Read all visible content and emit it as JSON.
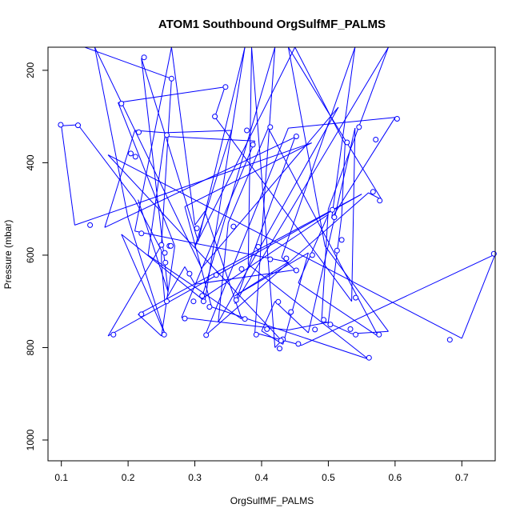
{
  "chart_data": {
    "type": "line",
    "title": "ATOM1 Southbound OrgSulfMF_PALMS",
    "xlabel": "OrgSulfMF_PALMS",
    "ylabel": "Pressure (mbar)",
    "xlim": [
      0.08,
      0.75
    ],
    "ylim": [
      1045,
      150
    ],
    "y_reversed": true,
    "x_ticks": [
      0.1,
      0.2,
      0.3,
      0.4,
      0.5,
      0.6,
      0.7
    ],
    "x_tick_labels": [
      "0.1",
      "0.2",
      "0.3",
      "0.4",
      "0.5",
      "0.6",
      "0.7"
    ],
    "y_ticks": [
      200,
      400,
      600,
      800,
      1000
    ],
    "y_tick_labels": [
      "200",
      "400",
      "600",
      "800",
      "1000"
    ],
    "grid": false,
    "legend": "none",
    "color": "#0000ff",
    "marker": "open-circle",
    "points": [
      [
        0.135,
        150
      ],
      [
        0.265,
        218
      ],
      [
        0.25,
        578
      ],
      [
        0.17,
        775
      ],
      [
        0.55,
        468
      ],
      [
        0.215,
        728
      ],
      [
        0.25,
        775
      ],
      [
        0.27,
        580
      ],
      [
        0.185,
        270
      ],
      [
        0.345,
        236
      ],
      [
        0.33,
        301
      ],
      [
        0.535,
        700
      ],
      [
        0.54,
        325
      ],
      [
        0.47,
        768
      ],
      [
        0.42,
        700
      ],
      [
        0.4,
        764
      ],
      [
        0.432,
        793
      ],
      [
        0.47,
        595
      ],
      [
        0.36,
        688
      ],
      [
        0.44,
        615
      ],
      [
        0.21,
        548
      ],
      [
        0.265,
        150
      ],
      [
        0.3,
        535
      ],
      [
        0.315,
        505
      ],
      [
        0.37,
        738
      ],
      [
        0.23,
        600
      ],
      [
        0.255,
        343
      ],
      [
        0.39,
        353
      ],
      [
        0.28,
        735
      ],
      [
        0.44,
        762
      ],
      [
        0.5,
        745
      ],
      [
        0.52,
        515
      ],
      [
        0.525,
        360
      ],
      [
        0.45,
        150
      ],
      [
        0.3,
        582
      ],
      [
        0.355,
        330
      ],
      [
        0.255,
        335
      ],
      [
        0.21,
        330
      ],
      [
        0.165,
        540
      ],
      [
        0.45,
        345
      ],
      [
        0.36,
        705
      ],
      [
        0.59,
        150
      ],
      [
        0.5,
        500
      ],
      [
        0.49,
        740
      ],
      [
        0.535,
        770
      ],
      [
        0.59,
        765
      ],
      [
        0.495,
        580
      ],
      [
        0.44,
        150
      ],
      [
        0.58,
        480
      ],
      [
        0.56,
        465
      ],
      [
        0.315,
        775
      ],
      [
        0.44,
        325
      ],
      [
        0.6,
        302
      ],
      [
        0.505,
        520
      ],
      [
        0.54,
        150
      ],
      [
        0.43,
        605
      ],
      [
        0.45,
        632
      ],
      [
        0.3,
        663
      ],
      [
        0.285,
        625
      ],
      [
        0.255,
        700
      ],
      [
        0.25,
        616
      ],
      [
        0.25,
        590
      ],
      [
        0.21,
        480
      ],
      [
        0.125,
        318
      ],
      [
        0.1,
        320
      ],
      [
        0.12,
        535
      ],
      [
        0.475,
        357
      ],
      [
        0.285,
        495
      ],
      [
        0.325,
        712
      ],
      [
        0.56,
        825
      ],
      [
        0.38,
        620
      ],
      [
        0.385,
        150
      ],
      [
        0.42,
        800
      ],
      [
        0.43,
        785
      ],
      [
        0.17,
        383
      ],
      [
        0.7,
        780
      ],
      [
        0.75,
        598
      ],
      [
        0.46,
        795
      ],
      [
        0.39,
        768
      ],
      [
        0.42,
        150
      ],
      [
        0.31,
        695
      ],
      [
        0.5,
        512
      ],
      [
        0.455,
        660
      ],
      [
        0.575,
        776
      ],
      [
        0.41,
        325
      ],
      [
        0.35,
        530
      ],
      [
        0.335,
        745
      ],
      [
        0.515,
        280
      ],
      [
        0.31,
        628
      ],
      [
        0.15,
        150
      ],
      [
        0.2,
        520
      ],
      [
        0.255,
        770
      ],
      [
        0.19,
        555
      ],
      [
        0.315,
        700
      ],
      [
        0.375,
        150
      ],
      [
        0.305,
        570
      ],
      [
        0.22,
        174
      ],
      [
        0.26,
        680
      ],
      [
        0.215,
        480
      ]
    ],
    "series": [
      {
        "values": [
          [
            0.265,
            218
          ],
          [
            0.25,
            578
          ],
          [
            0.178,
            772
          ],
          [
            0.567,
            463
          ],
          [
            0.22,
            728
          ],
          [
            0.254,
            772
          ],
          [
            0.262,
            580
          ],
          [
            0.19,
            272
          ],
          [
            0.346,
            236
          ],
          [
            0.33,
            300
          ],
          [
            0.541,
            692
          ],
          [
            0.546,
            323
          ],
          [
            0.48,
            761
          ],
          [
            0.425,
            701
          ],
          [
            0.408,
            760
          ],
          [
            0.432,
            782
          ],
          [
            0.476,
            600
          ],
          [
            0.375,
            738
          ],
          [
            0.437,
            607
          ],
          [
            0.22,
            553
          ],
          [
            0.313,
            700
          ],
          [
            0.303,
            542
          ],
          [
            0.387,
            361
          ],
          [
            0.285,
            737
          ],
          [
            0.444,
            723
          ],
          [
            0.503,
            750
          ],
          [
            0.509,
            518
          ],
          [
            0.528,
            356
          ],
          [
            0.298,
            700
          ],
          [
            0.378,
            330
          ],
          [
            0.258,
            340
          ],
          [
            0.216,
            334
          ],
          [
            0.143,
            535
          ],
          [
            0.452,
            343
          ],
          [
            0.362,
            697
          ],
          [
            0.506,
            502
          ],
          [
            0.493,
            740
          ],
          [
            0.533,
            760
          ],
          [
            0.576,
            772
          ],
          [
            0.52,
            567
          ],
          [
            0.577,
            482
          ],
          [
            0.571,
            350
          ],
          [
            0.317,
            773
          ],
          [
            0.413,
            323
          ],
          [
            0.603,
            305
          ],
          [
            0.513,
            590
          ],
          [
            0.413,
            609
          ],
          [
            0.452,
            633
          ],
          [
            0.311,
            688
          ],
          [
            0.292,
            640
          ],
          [
            0.258,
            700
          ],
          [
            0.256,
            616
          ],
          [
            0.255,
            595
          ],
          [
            0.204,
            380
          ],
          [
            0.125,
            319
          ],
          [
            0.099,
            318
          ],
          [
            0.541,
            772
          ],
          [
            0.427,
            802
          ],
          [
            0.429,
            785
          ],
          [
            0.682,
            783
          ],
          [
            0.748,
            597
          ],
          [
            0.455,
            792
          ],
          [
            0.392,
            772
          ],
          [
            0.395,
            582
          ],
          [
            0.37,
            630
          ],
          [
            0.322,
            712
          ],
          [
            0.332,
            643
          ],
          [
            0.358,
            538
          ],
          [
            0.264,
            580
          ],
          [
            0.211,
            387
          ],
          [
            0.561,
            822
          ],
          [
            0.224,
            172
          ]
        ]
      }
    ]
  }
}
